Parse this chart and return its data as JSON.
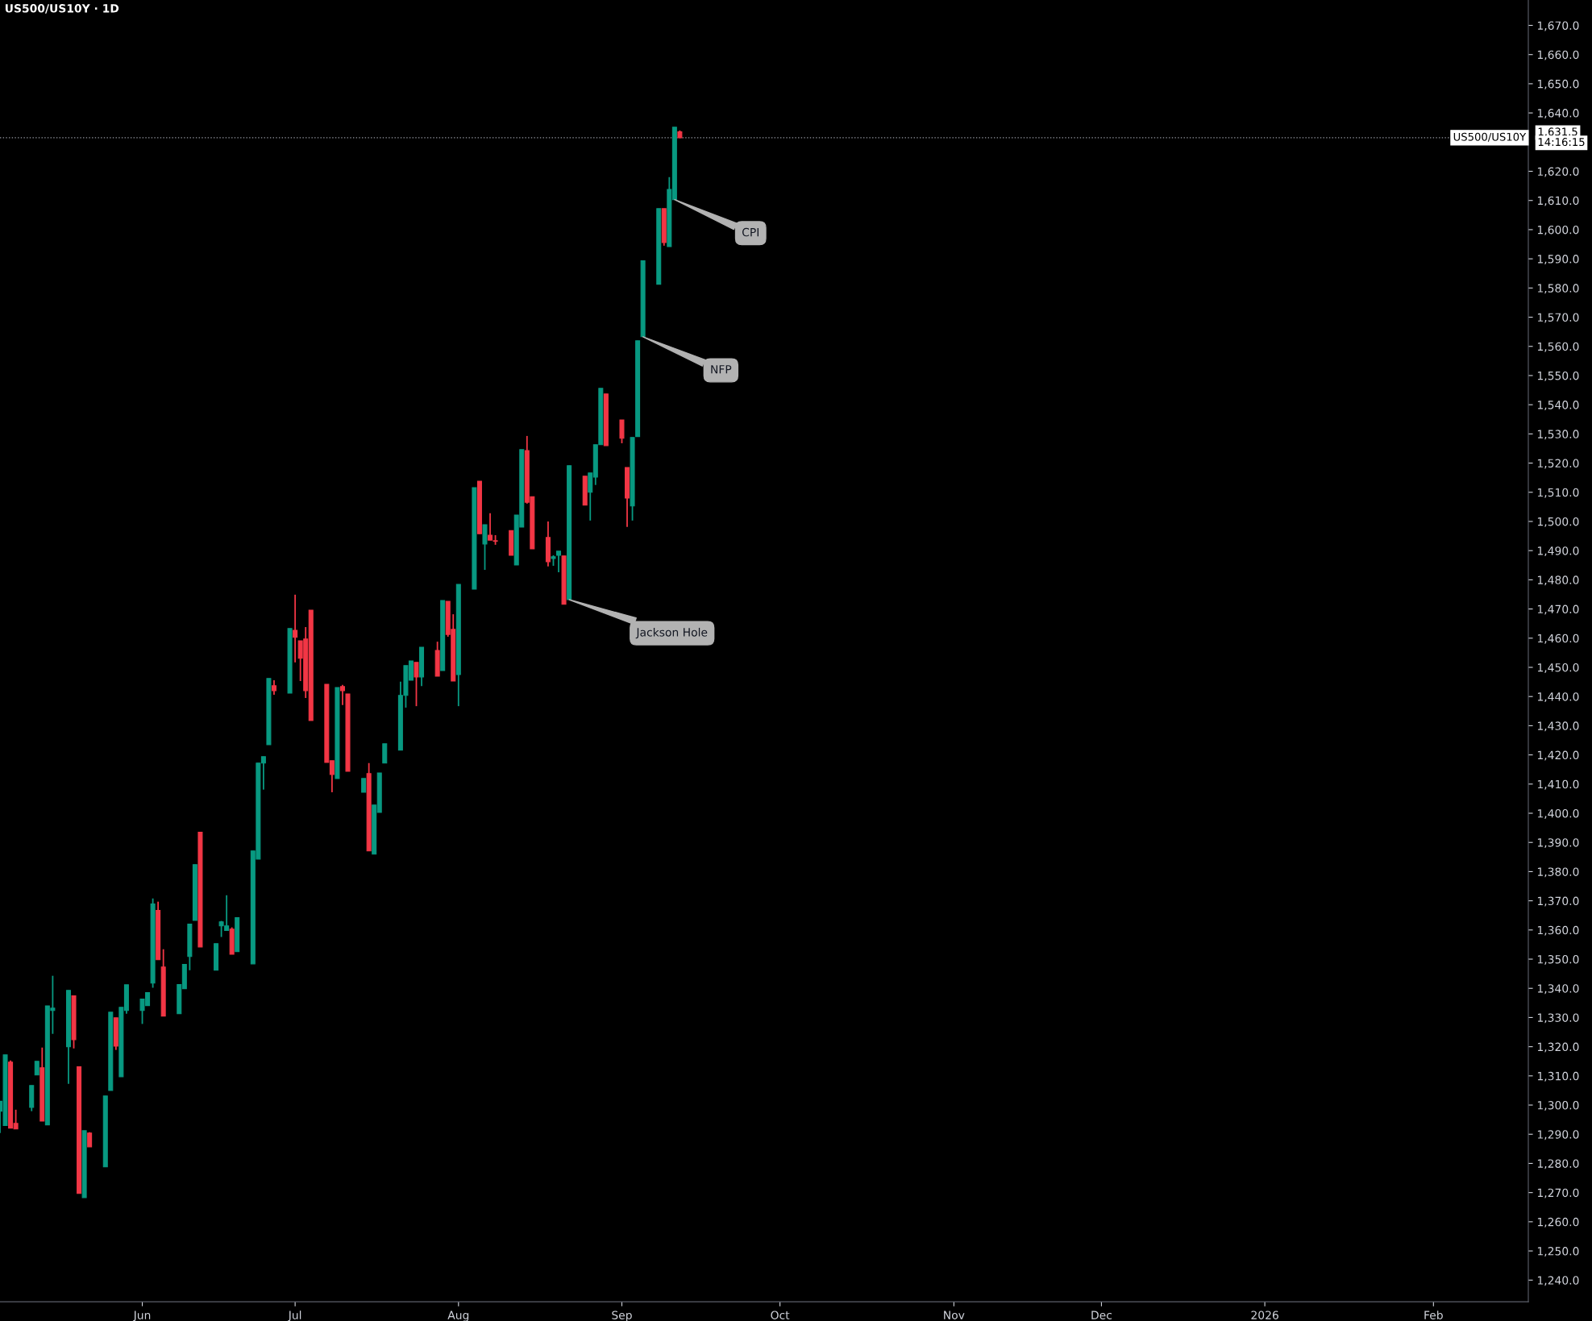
{
  "chart_data": {
    "type": "candlestick",
    "title": "US500/US10Y · 1D",
    "x": [
      "2025-05-06",
      "2025-05-07",
      "2025-05-08",
      "2025-05-09",
      "2025-05-12",
      "2025-05-13",
      "2025-05-14",
      "2025-05-15",
      "2025-05-16",
      "2025-05-19",
      "2025-05-20",
      "2025-05-21",
      "2025-05-22",
      "2025-05-23",
      "2025-05-26",
      "2025-05-27",
      "2025-05-28",
      "2025-05-29",
      "2025-05-30",
      "2025-06-02",
      "2025-06-03",
      "2025-06-04",
      "2025-06-05",
      "2025-06-06",
      "2025-06-09",
      "2025-06-10",
      "2025-06-11",
      "2025-06-12",
      "2025-06-13",
      "2025-06-16",
      "2025-06-17",
      "2025-06-18",
      "2025-06-19",
      "2025-06-20",
      "2025-06-23",
      "2025-06-24",
      "2025-06-25",
      "2025-06-26",
      "2025-06-27",
      "2025-06-30",
      "2025-07-01",
      "2025-07-02",
      "2025-07-03",
      "2025-07-04",
      "2025-07-07",
      "2025-07-08",
      "2025-07-09",
      "2025-07-10",
      "2025-07-11",
      "2025-07-14",
      "2025-07-15",
      "2025-07-16",
      "2025-07-17",
      "2025-07-18",
      "2025-07-21",
      "2025-07-22",
      "2025-07-23",
      "2025-07-24",
      "2025-07-25",
      "2025-07-28",
      "2025-07-29",
      "2025-07-30",
      "2025-07-31",
      "2025-08-01",
      "2025-08-04",
      "2025-08-05",
      "2025-08-06",
      "2025-08-07",
      "2025-08-08",
      "2025-08-11",
      "2025-08-12",
      "2025-08-13",
      "2025-08-14",
      "2025-08-15",
      "2025-08-18",
      "2025-08-19",
      "2025-08-20",
      "2025-08-21",
      "2025-08-22",
      "2025-08-25",
      "2025-08-26",
      "2025-08-27",
      "2025-08-28",
      "2025-08-29",
      "2025-09-01",
      "2025-09-02",
      "2025-09-03",
      "2025-09-04",
      "2025-09-05",
      "2025-09-08",
      "2025-09-09",
      "2025-09-10",
      "2025-09-11",
      "2025-09-12"
    ],
    "ohlc": [
      [
        1297.9,
        1301.3,
        1290.4,
        1301.3
      ],
      [
        1293.0,
        1317.2,
        1293.0,
        1317.2
      ],
      [
        1314.7,
        1315.3,
        1292.1,
        1292.1
      ],
      [
        1293.7,
        1298.4,
        1291.8,
        1291.8
      ],
      [
        1299.2,
        1306.7,
        1297.9,
        1306.7
      ],
      [
        1310.3,
        1315.0,
        1310.3,
        1315.0
      ],
      [
        1312.8,
        1319.7,
        1294.5,
        1294.5
      ],
      [
        1293.2,
        1334.0,
        1293.2,
        1334.0
      ],
      [
        1332.4,
        1344.3,
        1324.4,
        1333.2
      ],
      [
        1320.0,
        1339.3,
        1307.3,
        1339.3
      ],
      [
        1337.4,
        1337.4,
        1319.4,
        1322.4
      ],
      [
        1313.1,
        1313.1,
        1269.7,
        1269.7
      ],
      [
        1268.3,
        1291.2,
        1268.3,
        1291.2
      ],
      [
        1290.4,
        1290.7,
        1285.7,
        1285.7
      ],
      [
        1278.8,
        1303.1,
        1278.8,
        1303.1
      ],
      [
        1305.0,
        1331.8,
        1305.0,
        1331.8
      ],
      [
        1329.9,
        1329.9,
        1318.9,
        1320.2
      ],
      [
        1309.7,
        1333.5,
        1309.7,
        1333.5
      ],
      [
        1332.4,
        1341.2,
        1331.3,
        1341.2
      ],
      [
        1332.4,
        1336.3,
        1327.8,
        1336.3
      ],
      [
        1334.1,
        1338.5,
        1334.1,
        1338.5
      ],
      [
        1341.8,
        1370.8,
        1340.2,
        1368.9
      ],
      [
        1366.7,
        1369.7,
        1349.8,
        1349.8
      ],
      [
        1347.3,
        1353.4,
        1330.5,
        1330.5
      ],
      [
        1331.3,
        1341.3,
        1331.3,
        1341.3
      ],
      [
        1339.9,
        1348.2,
        1339.9,
        1348.2
      ],
      [
        1350.9,
        1362.0,
        1346.2,
        1362.0
      ],
      [
        1363.3,
        1382.4,
        1363.3,
        1382.4
      ],
      [
        1393.5,
        1393.5,
        1354.2,
        1354.2
      ],
      [
        1346.2,
        1355.3,
        1346.2,
        1355.3
      ],
      [
        1361.4,
        1363.1,
        1357.6,
        1362.8
      ],
      [
        1359.8,
        1371.9,
        1359.8,
        1361.4
      ],
      [
        1360.3,
        1360.9,
        1351.7,
        1351.7
      ],
      [
        1352.6,
        1364.2,
        1352.6,
        1364.2
      ],
      [
        1348.4,
        1387.1,
        1348.4,
        1387.1
      ],
      [
        1384.3,
        1417.2,
        1384.3,
        1417.2
      ],
      [
        1417.2,
        1419.4,
        1408.1,
        1419.4
      ],
      [
        1423.5,
        1446.2,
        1423.5,
        1446.2
      ],
      [
        1443.7,
        1445.6,
        1440.6,
        1442.0
      ],
      [
        1441.2,
        1463.3,
        1441.2,
        1463.3
      ],
      [
        1462.7,
        1474.9,
        1451.7,
        1460.3
      ],
      [
        1459.1,
        1459.1,
        1445.3,
        1453.1
      ],
      [
        1459.7,
        1463.8,
        1439.5,
        1442.0
      ],
      [
        1469.6,
        1469.6,
        1431.8,
        1431.8
      ],
      [
        1444.2,
        1444.2,
        1417.4,
        1417.4
      ],
      [
        1418.0,
        1418.0,
        1407.2,
        1413.3
      ],
      [
        1411.9,
        1443.1,
        1411.9,
        1443.1
      ],
      [
        1443.4,
        1444.0,
        1437.1,
        1442.0
      ],
      [
        1440.9,
        1440.9,
        1414.4,
        1414.4
      ],
      [
        1407.2,
        1411.9,
        1407.2,
        1411.9
      ],
      [
        1413.6,
        1417.2,
        1387.1,
        1387.1
      ],
      [
        1386.0,
        1402.8,
        1386.0,
        1402.8
      ],
      [
        1400.3,
        1413.8,
        1400.3,
        1413.8
      ],
      [
        1417.2,
        1423.8,
        1417.2,
        1423.8
      ],
      [
        1421.6,
        1445.1,
        1421.6,
        1440.4
      ],
      [
        1440.4,
        1450.6,
        1436.2,
        1450.6
      ],
      [
        1445.6,
        1452.2,
        1445.6,
        1452.2
      ],
      [
        1451.7,
        1451.7,
        1436.7,
        1446.7
      ],
      [
        1446.7,
        1456.9,
        1443.6,
        1456.9
      ],
      [
        1455.8,
        1458.8,
        1447.0,
        1447.0
      ],
      [
        1448.9,
        1472.9,
        1448.9,
        1472.9
      ],
      [
        1472.6,
        1472.6,
        1460.5,
        1461.3
      ],
      [
        1463.0,
        1468.2,
        1445.3,
        1445.3
      ],
      [
        1447.5,
        1478.4,
        1436.7,
        1478.4
      ],
      [
        1476.8,
        1511.6,
        1476.8,
        1511.6
      ],
      [
        1513.8,
        1513.8,
        1495.8,
        1495.8
      ],
      [
        1492.3,
        1498.9,
        1483.4,
        1498.9
      ],
      [
        1495.3,
        1502.8,
        1493.6,
        1493.6
      ],
      [
        1493.4,
        1495.3,
        1492.0,
        1493.2
      ],
      [
        1496.9,
        1496.9,
        1488.4,
        1488.4
      ],
      [
        1485.1,
        1502.2,
        1485.1,
        1502.2
      ],
      [
        1498.1,
        1524.6,
        1498.1,
        1524.6
      ],
      [
        1524.3,
        1529.3,
        1506.1,
        1506.6
      ],
      [
        1508.5,
        1508.5,
        1490.6,
        1490.6
      ],
      [
        1494.5,
        1500.0,
        1484.6,
        1486.2
      ],
      [
        1487.3,
        1488.4,
        1484.8,
        1487.9
      ],
      [
        1488.4,
        1489.8,
        1482.6,
        1489.8
      ],
      [
        1488.2,
        1488.2,
        1471.6,
        1471.6
      ],
      [
        1473.2,
        1519.1,
        1473.2,
        1519.1
      ],
      [
        1515.5,
        1515.5,
        1505.6,
        1505.6
      ],
      [
        1510.0,
        1516.6,
        1500.3,
        1516.6
      ],
      [
        1515.2,
        1526.3,
        1512.5,
        1526.3
      ],
      [
        1526.3,
        1545.6,
        1526.3,
        1545.6
      ],
      [
        1543.7,
        1543.7,
        1526.0,
        1526.0
      ],
      [
        1534.8,
        1534.8,
        1526.8,
        1528.5
      ],
      [
        1518.5,
        1518.5,
        1498.1,
        1508.0
      ],
      [
        1505.3,
        1528.8,
        1500.3,
        1528.8
      ],
      [
        1529.1,
        1561.9,
        1529.1,
        1561.9
      ],
      [
        1563.3,
        1589.3,
        1563.3,
        1589.3
      ],
      [
        1581.3,
        1607.2,
        1581.3,
        1607.2
      ],
      [
        1607.2,
        1607.2,
        1594.5,
        1595.6
      ],
      [
        1594.2,
        1618.0,
        1594.2,
        1613.8
      ],
      [
        1610.3,
        1635.1,
        1610.3,
        1635.1
      ],
      [
        1633.5,
        1634.0,
        1631.5,
        1631.5
      ]
    ],
    "colors": [
      "#089981",
      "#089981",
      "#f23645",
      "#f23645",
      "#089981",
      "#089981",
      "#f23645",
      "#089981",
      "#089981",
      "#089981",
      "#f23645",
      "#f23645",
      "#089981",
      "#f23645",
      "#089981",
      "#089981",
      "#f23645",
      "#089981",
      "#089981",
      "#089981",
      "#089981",
      "#089981",
      "#f23645",
      "#f23645",
      "#089981",
      "#089981",
      "#089981",
      "#089981",
      "#f23645",
      "#089981",
      "#089981",
      "#089981",
      "#f23645",
      "#089981",
      "#089981",
      "#089981",
      "#089981",
      "#089981",
      "#f23645",
      "#089981",
      "#f23645",
      "#f23645",
      "#f23645",
      "#f23645",
      "#f23645",
      "#f23645",
      "#089981",
      "#f23645",
      "#f23645",
      "#089981",
      "#f23645",
      "#089981",
      "#089981",
      "#089981",
      "#089981",
      "#089981",
      "#089981",
      "#f23645",
      "#089981",
      "#f23645",
      "#089981",
      "#f23645",
      "#f23645",
      "#089981",
      "#089981",
      "#f23645",
      "#089981",
      "#f23645",
      "#f23645",
      "#f23645",
      "#089981",
      "#089981",
      "#f23645",
      "#f23645",
      "#f23645",
      "#089981",
      "#089981",
      "#f23645",
      "#089981",
      "#f23645",
      "#089981",
      "#089981",
      "#089981",
      "#f23645",
      "#f23645",
      "#f23645",
      "#089981",
      "#089981",
      "#089981",
      "#089981",
      "#f23645",
      "#089981",
      "#089981",
      "#f23645"
    ],
    "xlim": [
      "2025-05-06",
      "2026-02-20"
    ],
    "xticks": [
      {
        "value": "2025-06-02",
        "label": "Jun"
      },
      {
        "value": "2025-07-01",
        "label": "Jul"
      },
      {
        "value": "2025-08-01",
        "label": "Aug"
      },
      {
        "value": "2025-09-01",
        "label": "Sep"
      },
      {
        "value": "2025-10-01",
        "label": "Oct"
      },
      {
        "value": "2025-11-03",
        "label": "Nov"
      },
      {
        "value": "2025-12-01",
        "label": "Dec"
      },
      {
        "value": "2026-01-01",
        "label": "2026"
      },
      {
        "value": "2026-02-02",
        "label": "Feb"
      }
    ],
    "ylim": [
      1232.6,
      1678.7
    ],
    "yticks": [
      {
        "value": 1240,
        "label": "1,240.0"
      },
      {
        "value": 1250,
        "label": "1,250.0"
      },
      {
        "value": 1260,
        "label": "1,260.0"
      },
      {
        "value": 1270,
        "label": "1,270.0"
      },
      {
        "value": 1280,
        "label": "1,280.0"
      },
      {
        "value": 1290,
        "label": "1,290.0"
      },
      {
        "value": 1300,
        "label": "1,300.0"
      },
      {
        "value": 1310,
        "label": "1,310.0"
      },
      {
        "value": 1320,
        "label": "1,320.0"
      },
      {
        "value": 1330,
        "label": "1,330.0"
      },
      {
        "value": 1340,
        "label": "1,340.0"
      },
      {
        "value": 1350,
        "label": "1,350.0"
      },
      {
        "value": 1360,
        "label": "1,360.0"
      },
      {
        "value": 1370,
        "label": "1,370.0"
      },
      {
        "value": 1380,
        "label": "1,380.0"
      },
      {
        "value": 1390,
        "label": "1,390.0"
      },
      {
        "value": 1400,
        "label": "1,400.0"
      },
      {
        "value": 1410,
        "label": "1,410.0"
      },
      {
        "value": 1420,
        "label": "1,420.0"
      },
      {
        "value": 1430,
        "label": "1,430.0"
      },
      {
        "value": 1440,
        "label": "1,440.0"
      },
      {
        "value": 1450,
        "label": "1,450.0"
      },
      {
        "value": 1460,
        "label": "1,460.0"
      },
      {
        "value": 1470,
        "label": "1,470.0"
      },
      {
        "value": 1480,
        "label": "1,480.0"
      },
      {
        "value": 1490,
        "label": "1,490.0"
      },
      {
        "value": 1500,
        "label": "1,500.0"
      },
      {
        "value": 1510,
        "label": "1,510.0"
      },
      {
        "value": 1520,
        "label": "1,520.0"
      },
      {
        "value": 1530,
        "label": "1,530.0"
      },
      {
        "value": 1540,
        "label": "1,540.0"
      },
      {
        "value": 1550,
        "label": "1,550.0"
      },
      {
        "value": 1560,
        "label": "1,560.0"
      },
      {
        "value": 1570,
        "label": "1,570.0"
      },
      {
        "value": 1580,
        "label": "1,580.0"
      },
      {
        "value": 1590,
        "label": "1,590.0"
      },
      {
        "value": 1600,
        "label": "1,600.0"
      },
      {
        "value": 1610,
        "label": "1,610.0"
      },
      {
        "value": 1620,
        "label": "1,620.0"
      },
      {
        "value": 1640,
        "label": "1,640.0"
      },
      {
        "value": 1650,
        "label": "1,650.0"
      },
      {
        "value": 1660,
        "label": "1,660.0"
      },
      {
        "value": 1670,
        "label": "1,670.0"
      }
    ],
    "ref_lines": [
      {
        "axis": "y",
        "value": 1631.5,
        "label": "US500/US10Y",
        "color": "#9598a1",
        "line_style": "dotted"
      }
    ],
    "annotations": [
      "1,631.5",
      "14:16:15",
      {
        "text": "CPI",
        "x": "2025-09-11",
        "y": 1610.3
      },
      {
        "text": "NFP",
        "x": "2025-09-05",
        "y": 1563.3
      },
      {
        "text": "Jackson Hole",
        "x": "2025-08-22",
        "y": 1473.2
      }
    ],
    "grid": false,
    "legend": false
  }
}
